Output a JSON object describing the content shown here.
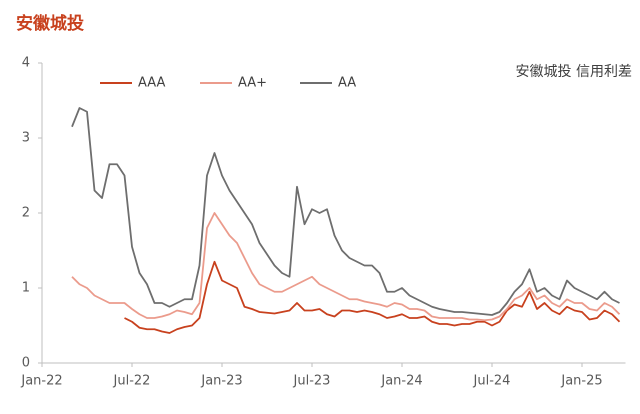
{
  "chart_data": {
    "type": "line",
    "title": "安徽城投",
    "annotation": "安徽城投 信用利差",
    "categories": [
      "Jan-22",
      null,
      null,
      null,
      null,
      null,
      null,
      null,
      null,
      null,
      null,
      null,
      "Jul-22",
      null,
      null,
      null,
      null,
      null,
      null,
      null,
      null,
      null,
      null,
      null,
      "Jan-23",
      null,
      null,
      null,
      null,
      null,
      null,
      null,
      null,
      null,
      null,
      null,
      "Jul-23",
      null,
      null,
      null,
      null,
      null,
      null,
      null,
      null,
      null,
      null,
      null,
      "Jan-24",
      null,
      null,
      null,
      null,
      null,
      null,
      null,
      null,
      null,
      null,
      null,
      "Jul-24",
      null,
      null,
      null,
      null,
      null,
      null,
      null,
      null,
      null,
      null,
      null,
      "Jan-25",
      null,
      null,
      null,
      null,
      null
    ],
    "series": [
      {
        "name": "AAA",
        "color": "#c8411e",
        "values": [
          null,
          null,
          null,
          null,
          null,
          null,
          null,
          null,
          null,
          null,
          null,
          0.6,
          0.55,
          0.47,
          0.45,
          0.45,
          0.42,
          0.4,
          0.45,
          0.48,
          0.5,
          0.6,
          1.05,
          1.35,
          1.1,
          1.05,
          1.0,
          0.75,
          0.72,
          0.68,
          0.67,
          0.66,
          0.68,
          0.7,
          0.8,
          0.7,
          0.7,
          0.72,
          0.65,
          0.62,
          0.7,
          0.7,
          0.68,
          0.7,
          0.68,
          0.65,
          0.6,
          0.62,
          0.65,
          0.6,
          0.6,
          0.62,
          0.55,
          0.52,
          0.52,
          0.5,
          0.52,
          0.52,
          0.55,
          0.55,
          0.5,
          0.55,
          0.7,
          0.78,
          0.75,
          0.95,
          0.72,
          0.8,
          0.7,
          0.65,
          0.75,
          0.7,
          0.68,
          0.58,
          0.6,
          0.7,
          0.65,
          0.55
        ]
      },
      {
        "name": "AA+",
        "color": "#eb9b8c",
        "values": [
          null,
          null,
          null,
          null,
          1.15,
          1.05,
          1.0,
          0.9,
          0.85,
          0.8,
          0.8,
          0.8,
          0.72,
          0.65,
          0.6,
          0.6,
          0.62,
          0.65,
          0.7,
          0.68,
          0.65,
          0.8,
          1.8,
          2.0,
          1.85,
          1.7,
          1.6,
          1.4,
          1.2,
          1.05,
          1.0,
          0.95,
          0.95,
          1.0,
          1.05,
          1.1,
          1.15,
          1.05,
          1.0,
          0.95,
          0.9,
          0.85,
          0.85,
          0.82,
          0.8,
          0.78,
          0.75,
          0.8,
          0.78,
          0.72,
          0.72,
          0.7,
          0.62,
          0.6,
          0.6,
          0.6,
          0.6,
          0.58,
          0.58,
          0.57,
          0.58,
          0.62,
          0.72,
          0.85,
          0.9,
          1.0,
          0.85,
          0.9,
          0.8,
          0.75,
          0.85,
          0.8,
          0.8,
          0.72,
          0.7,
          0.8,
          0.75,
          0.65
        ]
      },
      {
        "name": "AA",
        "color": "#6e6e6e",
        "values": [
          null,
          null,
          null,
          null,
          3.15,
          3.4,
          3.35,
          2.3,
          2.2,
          2.65,
          2.65,
          2.5,
          1.55,
          1.2,
          1.05,
          0.8,
          0.8,
          0.75,
          0.8,
          0.85,
          0.85,
          1.3,
          2.5,
          2.8,
          2.5,
          2.3,
          2.15,
          2.0,
          1.85,
          1.6,
          1.45,
          1.3,
          1.2,
          1.15,
          2.35,
          1.85,
          2.05,
          2.0,
          2.05,
          1.7,
          1.5,
          1.4,
          1.35,
          1.3,
          1.3,
          1.2,
          0.95,
          0.95,
          1.0,
          0.9,
          0.85,
          0.8,
          0.75,
          0.72,
          0.7,
          0.68,
          0.68,
          0.67,
          0.66,
          0.65,
          0.64,
          0.68,
          0.8,
          0.95,
          1.05,
          1.25,
          0.95,
          1.0,
          0.9,
          0.85,
          1.1,
          1.0,
          0.95,
          0.9,
          0.85,
          0.95,
          0.85,
          0.8
        ]
      }
    ],
    "ylim": [
      0,
      4
    ],
    "yticks": [
      0,
      1,
      2,
      3,
      4
    ],
    "grid": false
  }
}
